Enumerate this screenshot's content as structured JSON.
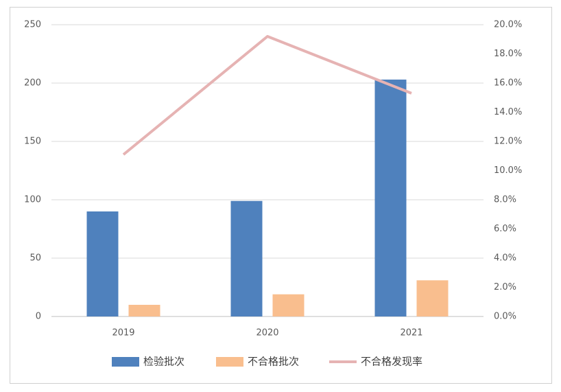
{
  "chart_data": {
    "type": "bar",
    "categories": [
      "2019",
      "2020",
      "2021"
    ],
    "series": [
      {
        "name": "检验批次",
        "color": "#4f81bd",
        "values": [
          90,
          99,
          203
        ]
      },
      {
        "name": "不合格批次",
        "color": "#f9be8e",
        "values": [
          10,
          19,
          31
        ]
      },
      {
        "name": "不合格发现率",
        "color": "#e6b3b3",
        "type": "line",
        "axis": "y2",
        "values": [
          11.1,
          19.2,
          15.3
        ]
      }
    ],
    "ylim": [
      0,
      250
    ],
    "yticks": [
      0,
      50,
      100,
      150,
      200,
      250
    ],
    "y2lim": [
      0,
      20
    ],
    "y2ticks": [
      {
        "value": 0,
        "label": "0.0%"
      },
      {
        "value": 2,
        "label": "2.0%"
      },
      {
        "value": 4,
        "label": "4.0%"
      },
      {
        "value": 6,
        "label": "6.0%"
      },
      {
        "value": 8,
        "label": "8.0%"
      },
      {
        "value": 10,
        "label": "10.0%"
      },
      {
        "value": 12,
        "label": "12.0%"
      },
      {
        "value": 14,
        "label": "14.0%"
      },
      {
        "value": 16,
        "label": "16.0%"
      },
      {
        "value": 18,
        "label": "18.0%"
      },
      {
        "value": 20,
        "label": "20.0%"
      }
    ],
    "grid": true,
    "legend": "bottom"
  }
}
